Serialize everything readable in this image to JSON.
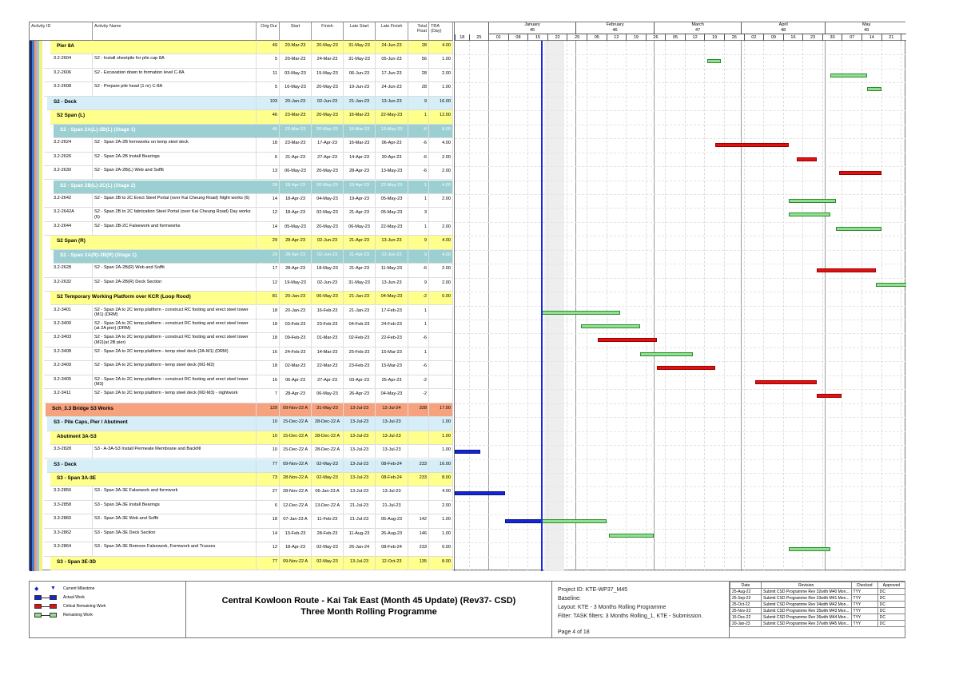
{
  "columns": {
    "activity_id": "Activity ID",
    "activity_name": "Activity Name",
    "orig_dur": "Orig Dur",
    "start": "Start",
    "finish": "Finish",
    "late_start": "Late Start",
    "late_finish": "Late Finish",
    "total_float": "Total Float",
    "tra": "TRA (Day)"
  },
  "timescale": {
    "origin": "18-Dec-22",
    "data_date": "20-Jan-23",
    "non_working": [
      "21-Jan-23",
      "28-Jan-23"
    ],
    "months": [
      {
        "label": "January",
        "period": "45",
        "from": "01-Jan-23",
        "to": "01-Feb-23"
      },
      {
        "label": "February",
        "period": "46",
        "from": "01-Feb-23",
        "to": "01-Mar-23"
      },
      {
        "label": "March",
        "period": "47",
        "from": "01-Mar-23",
        "to": "01-Apr-23"
      },
      {
        "label": "April",
        "period": "48",
        "from": "01-Apr-23",
        "to": "01-May-23"
      },
      {
        "label": "May",
        "period": "49",
        "from": "01-May-23",
        "to": "01-Jun-23"
      }
    ],
    "weeks": [
      "18",
      "25",
      "01",
      "08",
      "15",
      "22",
      "29",
      "05",
      "12",
      "19",
      "26",
      "05",
      "12",
      "19",
      "26",
      "02",
      "09",
      "16",
      "23",
      "30",
      "07",
      "14",
      "21",
      "28"
    ]
  },
  "colors": {
    "orange": "#f7a27e",
    "lightblue": "#d5eef7",
    "yellow": "#ffff8c",
    "teal": "#9ccfd1",
    "critical": "#e21010",
    "remaining": "#8fe08f",
    "actual": "#1126d6",
    "data_date": "#1b2be0"
  },
  "rows": [
    {
      "type": "y",
      "level": 3,
      "id": "Pier 8A",
      "name": "",
      "dur": "49",
      "start": "20-Mar-23",
      "finish": "20-May-23",
      "ls": "31-May-23",
      "lf": "24-Jun-23",
      "tf": "28",
      "tra": "4.00"
    },
    {
      "type": "t",
      "id": "3.2-2604",
      "name": "S2 - Install sheetpile for pile cap 8A",
      "dur": "5",
      "start": "20-Mar-23",
      "finish": "24-Mar-23",
      "ls": "31-May-23",
      "lf": "05-Jun-23",
      "tf": "56",
      "tra": "1.00",
      "bars": [
        {
          "k": "remaining",
          "from": "20-Mar-23",
          "to": "24-Mar-23"
        }
      ]
    },
    {
      "type": "t",
      "id": "3.2-2606",
      "name": "S2 - Excavation down to formation level C-8A",
      "dur": "11",
      "start": "03-May-23",
      "finish": "15-May-23",
      "ls": "06-Jun-23",
      "lf": "17-Jun-23",
      "tf": "28",
      "tra": "2.00",
      "bars": [
        {
          "k": "remaining",
          "from": "03-May-23",
          "to": "15-May-23"
        }
      ]
    },
    {
      "type": "t",
      "id": "3.2-2608",
      "name": "S2 - Prepare pile head (1 nr) C-8A",
      "dur": "5",
      "start": "16-May-23",
      "finish": "20-May-23",
      "ls": "19-Jun-23",
      "lf": "24-Jun-23",
      "tf": "28",
      "tra": "1.00",
      "bars": [
        {
          "k": "remaining",
          "from": "16-May-23",
          "to": "20-May-23"
        }
      ]
    },
    {
      "type": "b",
      "level": 2,
      "id": "S2 - Deck",
      "name": "",
      "dur": "103",
      "start": "20-Jan-23",
      "finish": "02-Jun-23",
      "ls": "21-Jan-23",
      "lf": "13-Jun-23",
      "tf": "9",
      "tra": "16.00"
    },
    {
      "type": "y",
      "level": 3,
      "id": "S2 Span (L)",
      "name": "",
      "dur": "46",
      "start": "23-Mar-23",
      "finish": "20-May-23",
      "ls": "16-Mar-23",
      "lf": "22-May-23",
      "tf": "1",
      "tra": "12.00"
    },
    {
      "type": "g",
      "level": 4,
      "id": "S2 - Span 2A(L)-2B(L) (Stage 1)",
      "name": "",
      "dur": "46",
      "start": "23-Mar-23",
      "finish": "20-May-23",
      "ls": "16-Mar-23",
      "lf": "13-May-23",
      "tf": "-6",
      "tra": "8.00"
    },
    {
      "type": "t",
      "id": "3.2-2624",
      "name": "S2 - Span 2A-2B formworks on temp steel deck",
      "dur": "18",
      "start": "23-Mar-23",
      "finish": "17-Apr-23",
      "ls": "16-Mar-23",
      "lf": "06-Apr-23",
      "tf": "-6",
      "tra": "4.00",
      "bars": [
        {
          "k": "critical",
          "from": "23-Mar-23",
          "to": "17-Apr-23"
        }
      ]
    },
    {
      "type": "t",
      "id": "3.2-2626",
      "name": "S2 - Span 2A-2B Install Bearings",
      "dur": "6",
      "start": "21-Apr-23",
      "finish": "27-Apr-23",
      "ls": "14-Apr-23",
      "lf": "20-Apr-23",
      "tf": "-6",
      "tra": "2.00",
      "bars": [
        {
          "k": "critical",
          "from": "21-Apr-23",
          "to": "27-Apr-23"
        }
      ]
    },
    {
      "type": "t",
      "id": "3.2-2630",
      "name": "S2 - Span 2A-2B(L) Web and Soffit",
      "dur": "13",
      "start": "06-May-23",
      "finish": "20-May-23",
      "ls": "28-Apr-23",
      "lf": "13-May-23",
      "tf": "-6",
      "tra": "2.00",
      "bars": [
        {
          "k": "critical",
          "from": "06-May-23",
          "to": "20-May-23"
        }
      ]
    },
    {
      "type": "g",
      "level": 4,
      "id": "S2 - Span 2B(L)-2C(L) (Stage 2)",
      "name": "",
      "dur": "28",
      "start": "18-Apr-23",
      "finish": "20-May-23",
      "ls": "19-Apr-23",
      "lf": "22-May-23",
      "tf": "1",
      "tra": "4.00"
    },
    {
      "type": "t",
      "id": "3.2-2642",
      "name": "S2 - Span 2B to 2C Erect Steel Portal (over Kai Cheung Road) Night works (6)",
      "dur": "14",
      "start": "18-Apr-23",
      "finish": "04-May-23",
      "ls": "19-Apr-23",
      "lf": "05-May-23",
      "tf": "1",
      "tra": "2.00",
      "bars": [
        {
          "k": "remaining",
          "from": "18-Apr-23",
          "to": "04-May-23"
        }
      ]
    },
    {
      "type": "t",
      "id": "3.2-2642A",
      "name": "S2 - Span 2B to 2C fabrication Steel Portal (over Kai Cheung Road) Day works (6)",
      "dur": "12",
      "start": "18-Apr-23",
      "finish": "02-May-23",
      "ls": "21-Apr-23",
      "lf": "05-May-23",
      "tf": "3",
      "tra": "",
      "bars": [
        {
          "k": "remaining",
          "from": "18-Apr-23",
          "to": "02-May-23"
        }
      ]
    },
    {
      "type": "t",
      "id": "3.2-2644",
      "name": "S2 - Span 2B-2C Falsework and formworks",
      "dur": "14",
      "start": "05-May-23",
      "finish": "20-May-23",
      "ls": "06-May-23",
      "lf": "22-May-23",
      "tf": "1",
      "tra": "2.00",
      "bars": [
        {
          "k": "remaining",
          "from": "05-May-23",
          "to": "20-May-23"
        }
      ]
    },
    {
      "type": "y",
      "level": 3,
      "id": "S2 Span (R)",
      "name": "",
      "dur": "29",
      "start": "28-Apr-23",
      "finish": "02-Jun-23",
      "ls": "21-Apr-23",
      "lf": "13-Jun-23",
      "tf": "9",
      "tra": "4.00"
    },
    {
      "type": "g",
      "level": 4,
      "id": "S2 - Span 2A(R)-2B(R) (Stage 1)",
      "name": "",
      "dur": "29",
      "start": "28-Apr-23",
      "finish": "02-Jun-23",
      "ls": "21-Apr-23",
      "lf": "13-Jun-23",
      "tf": "9",
      "tra": "4.00"
    },
    {
      "type": "t",
      "id": "3.2-2628",
      "name": "S2 - Span 2A-2B(R) Web and Soffit",
      "dur": "17",
      "start": "28-Apr-23",
      "finish": "18-May-23",
      "ls": "21-Apr-23",
      "lf": "11-May-23",
      "tf": "-6",
      "tra": "2.00",
      "bars": [
        {
          "k": "critical",
          "from": "28-Apr-23",
          "to": "18-May-23"
        }
      ]
    },
    {
      "type": "t",
      "id": "3.2-2632",
      "name": "S2 - Span 2A-2B(R) Deck Section",
      "dur": "12",
      "start": "19-May-23",
      "finish": "02-Jun-23",
      "ls": "31-May-23",
      "lf": "13-Jun-23",
      "tf": "9",
      "tra": "2.00",
      "bars": [
        {
          "k": "remaining",
          "from": "19-May-23",
          "to": "02-Jun-23"
        }
      ]
    },
    {
      "type": "y",
      "level": 3,
      "id": "S2 Temporary Working Platform over KCR (Loop Rood)",
      "name": "",
      "dur": "81",
      "start": "20-Jan-23",
      "finish": "06-May-23",
      "ls": "21-Jan-23",
      "lf": "04-May-23",
      "tf": "-2",
      "tra": "0.00"
    },
    {
      "type": "t",
      "id": "3.2-3401",
      "name": "S2 - Span 2A to 2C temp platform - construct RC footing and erect steel tower (M1) (DRM)",
      "dur": "18",
      "start": "20-Jan-23",
      "finish": "16-Feb-23",
      "ls": "21-Jan-23",
      "lf": "17-Feb-23",
      "tf": "1",
      "tra": "",
      "bars": [
        {
          "k": "remaining",
          "from": "20-Jan-23",
          "to": "16-Feb-23"
        }
      ]
    },
    {
      "type": "t",
      "id": "3.2-3400",
      "name": "S2 - Span 2A to 2C temp platform - construct RC footing and erect steel tower (at 2A pier) (DRM)",
      "dur": "18",
      "start": "03-Feb-23",
      "finish": "23-Feb-23",
      "ls": "04-Feb-23",
      "lf": "24-Feb-23",
      "tf": "1",
      "tra": "",
      "bars": [
        {
          "k": "remaining",
          "from": "03-Feb-23",
          "to": "23-Feb-23"
        }
      ]
    },
    {
      "type": "t",
      "id": "3.2-3403",
      "name": "S2 - Span 2A to 2C temp platform - construct RC footing and erect steel tower (M2)(at 2B pier)",
      "dur": "18",
      "start": "09-Feb-23",
      "finish": "01-Mar-23",
      "ls": "02-Feb-23",
      "lf": "22-Feb-23",
      "tf": "-6",
      "tra": "",
      "bars": [
        {
          "k": "critical",
          "from": "09-Feb-23",
          "to": "01-Mar-23"
        }
      ]
    },
    {
      "type": "t",
      "id": "3.2-3408",
      "name": "S2 - Span 2A to 2C temp platform - temp steel deck (2A-M1) (DRM)",
      "dur": "16",
      "start": "24-Feb-23",
      "finish": "14-Mar-23",
      "ls": "25-Feb-23",
      "lf": "15-Mar-23",
      "tf": "1",
      "tra": "",
      "bars": [
        {
          "k": "remaining",
          "from": "24-Feb-23",
          "to": "14-Mar-23"
        }
      ]
    },
    {
      "type": "t",
      "id": "3.2-3409",
      "name": "S2 - Span 2A to 2C temp platform - temp steel deck (M1-M2)",
      "dur": "18",
      "start": "02-Mar-23",
      "finish": "22-Mar-23",
      "ls": "23-Feb-23",
      "lf": "15-Mar-23",
      "tf": "-6",
      "tra": "",
      "bars": [
        {
          "k": "critical",
          "from": "02-Mar-23",
          "to": "22-Mar-23"
        }
      ]
    },
    {
      "type": "t",
      "id": "3.2-3405",
      "name": "S2 - Span 2A to 2C temp platform - construct RC footing and erect steel tower (M3)",
      "dur": "16",
      "start": "06-Apr-23",
      "finish": "27-Apr-23",
      "ls": "03-Apr-23",
      "lf": "25-Apr-23",
      "tf": "-2",
      "tra": "",
      "bars": [
        {
          "k": "critical",
          "from": "06-Apr-23",
          "to": "27-Apr-23"
        }
      ]
    },
    {
      "type": "t",
      "id": "3.2-3411",
      "name": "S2 - Span 2A to 2C temp platform - temp steel deck (M2-M3) - nightwork",
      "dur": "7",
      "start": "28-Apr-23",
      "finish": "06-May-23",
      "ls": "26-Apr-23",
      "lf": "04-May-23",
      "tf": "-2",
      "tra": "",
      "bars": [
        {
          "k": "critical",
          "from": "28-Apr-23",
          "to": "06-May-23"
        }
      ]
    },
    {
      "type": "o",
      "level": 1,
      "id": "Sch_3.3 Bridge S3 Works",
      "name": "",
      "dur": "129",
      "start": "09-Nov-22 A",
      "finish": "31-May-23",
      "ls": "13-Jul-23",
      "lf": "12-Jul-24",
      "tf": "328",
      "tra": "17.00"
    },
    {
      "type": "b",
      "level": 2,
      "id": "S3 - Pile Caps, Pier / Abutment",
      "name": "",
      "dur": "10",
      "start": "15-Dec-22 A",
      "finish": "28-Dec-22 A",
      "ls": "13-Jul-23",
      "lf": "13-Jul-23",
      "tf": "",
      "tra": "1.00"
    },
    {
      "type": "y",
      "level": 3,
      "id": "Abutment 3A-S3",
      "name": "",
      "dur": "10",
      "start": "15-Dec-22 A",
      "finish": "28-Dec-22 A",
      "ls": "13-Jul-23",
      "lf": "13-Jul-23",
      "tf": "",
      "tra": "1.00"
    },
    {
      "type": "t",
      "id": "3.3-2828",
      "name": "S3 - A-3A-S3 Install Permeate Membrane and Backfill",
      "dur": "10",
      "start": "15-Dec-22 A",
      "finish": "28-Dec-22 A",
      "ls": "13-Jul-23",
      "lf": "13-Jul-23",
      "tf": "",
      "tra": "1.00",
      "bars": [
        {
          "k": "actual",
          "from": "15-Dec-22",
          "to": "28-Dec-22"
        }
      ]
    },
    {
      "type": "b",
      "level": 2,
      "id": "S3 - Deck",
      "name": "",
      "dur": "77",
      "start": "09-Nov-22 A",
      "finish": "02-May-23",
      "ls": "13-Jul-23",
      "lf": "08-Feb-24",
      "tf": "233",
      "tra": "16.00"
    },
    {
      "type": "y",
      "level": 3,
      "id": "S3 - Span 3A-3E",
      "name": "",
      "dur": "73",
      "start": "28-Nov-22 A",
      "finish": "02-May-23",
      "ls": "13-Jul-23",
      "lf": "08-Feb-24",
      "tf": "233",
      "tra": "8.00"
    },
    {
      "type": "t",
      "id": "3.3-2856",
      "name": "S3 - Span 3A-3E Falsework and formwork",
      "dur": "27",
      "start": "28-Nov-22 A",
      "finish": "06-Jan-23 A",
      "ls": "13-Jul-23",
      "lf": "13-Jul-23",
      "tf": "",
      "tra": "4.00",
      "bars": [
        {
          "k": "actual",
          "from": "28-Nov-22",
          "to": "06-Jan-23"
        }
      ]
    },
    {
      "type": "t",
      "id": "3.3-2858",
      "name": "S3 - Span 3A-3E Install Bearings",
      "dur": "6",
      "start": "12-Dec-22 A",
      "finish": "13-Dec-22 A",
      "ls": "21-Jul-23",
      "lf": "21-Jul-23",
      "tf": "",
      "tra": "2.00",
      "bars": []
    },
    {
      "type": "t",
      "id": "3.3-2860",
      "name": "S3 - Span 3A-3E Web and Soffit",
      "dur": "18",
      "start": "07-Jan-23 A",
      "finish": "11-Feb-23",
      "ls": "21-Jul-23",
      "lf": "05-Aug-23",
      "tf": "142",
      "tra": "1.00",
      "bars": [
        {
          "k": "actual",
          "from": "07-Jan-23",
          "to": "20-Jan-23"
        },
        {
          "k": "remaining",
          "from": "20-Jan-23",
          "to": "11-Feb-23"
        }
      ]
    },
    {
      "type": "t",
      "id": "3.3-2862",
      "name": "S3 - Span 3A-3E Deck Section",
      "dur": "14",
      "start": "13-Feb-23",
      "finish": "28-Feb-23",
      "ls": "11-Aug-23",
      "lf": "26-Aug-23",
      "tf": "146",
      "tra": "1.00",
      "bars": [
        {
          "k": "remaining",
          "from": "13-Feb-23",
          "to": "28-Feb-23"
        }
      ]
    },
    {
      "type": "t",
      "id": "3.3-2864",
      "name": "S3 - Span 3A-3E Remove Falsework, Formwork and Trusses",
      "dur": "12",
      "start": "18-Apr-23",
      "finish": "02-May-23",
      "ls": "26-Jan-24",
      "lf": "08-Feb-24",
      "tf": "233",
      "tra": "0.00",
      "bars": [
        {
          "k": "remaining",
          "from": "18-Apr-23",
          "to": "02-May-23"
        }
      ]
    },
    {
      "type": "y",
      "level": 3,
      "id": "S3 - Span 3E-3D",
      "name": "",
      "dur": "77",
      "start": "09-Nov-22 A",
      "finish": "02-May-23",
      "ls": "13-Jul-23",
      "lf": "12-Oct-23",
      "tf": "135",
      "tra": "8.00"
    }
  ],
  "legend": {
    "milestone": "Current Milestone",
    "actual": "Actual Work",
    "critical": "Critical Remaining Work",
    "remaining": "Remaining Work"
  },
  "footer": {
    "title_line1": "Central Kowloon Route - Kai Tak East (Month 45 Update) (Rev37- CSD)",
    "title_line2": "Three Month Rolling Programme",
    "project_id": "Project ID: KTE-WP37_M45",
    "baseline": "Baseline:",
    "layout": "Layout: KTE - 3 Months Rolling Programme",
    "filter": "Filter: TASK filters: 3 Months Rolling_1, KTE - Submission.",
    "page": "Page 4 of 18",
    "rev_headers": {
      "date": "Date",
      "revision": "Revision",
      "checked": "Checked",
      "approved": "Approved"
    },
    "revisions": [
      {
        "date": "25-Aug-22",
        "revision": "Submit CSD Programme Rev 32with M40 Mon...",
        "checked": "TYY",
        "approved": "DC"
      },
      {
        "date": "25-Sep-22",
        "revision": "Submit CSD Programme Rev 33with M41 Mon...",
        "checked": "TYY",
        "approved": "DC"
      },
      {
        "date": "25-Oct-22",
        "revision": "Submit CSD Programme Rev 34with M42 Mon...",
        "checked": "TYY",
        "approved": "DC"
      },
      {
        "date": "25-Nov-22",
        "revision": "Submit CSD Programme Rev 35with M43 Mon...",
        "checked": "TYY",
        "approved": "DC"
      },
      {
        "date": "15-Dec-22",
        "revision": "Submit CSD Programme Rev 36with M44 Mon...",
        "checked": "TYY",
        "approved": "DC"
      },
      {
        "date": "20-Jan-23",
        "revision": "Submit CSD Programme Rev 37with M45 Mon...",
        "checked": "TYY",
        "approved": "DC"
      }
    ]
  }
}
